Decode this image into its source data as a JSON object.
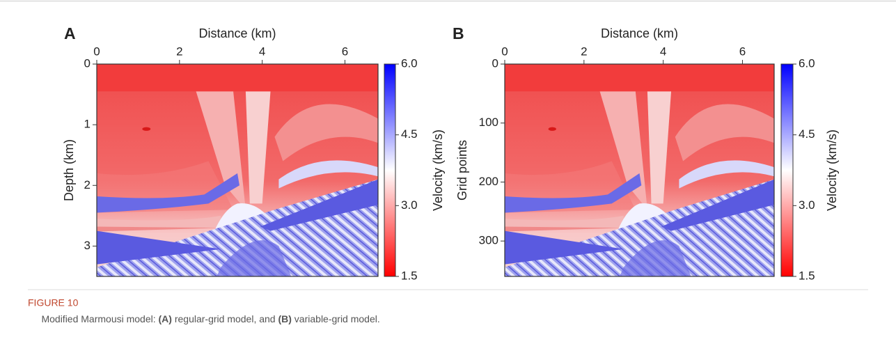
{
  "figure": {
    "label": "FIGURE 10",
    "caption": [
      "Modified Marmousi model: ",
      "(A)",
      " regular-grid model, and ",
      "(B)",
      " variable-grid model."
    ]
  },
  "panels": [
    {
      "letter": "A",
      "x_label": "Distance (km)",
      "y_label": "Depth (km)",
      "xlim": [
        0,
        6.8
      ],
      "xticks": [
        0,
        2,
        4,
        6
      ],
      "ylim": [
        0,
        3.5
      ],
      "yticks": [
        0,
        1,
        2,
        3
      ],
      "colorbar": {
        "label": "Velocity (km/s)",
        "lim": [
          1.5,
          6.0
        ],
        "colors": [
          "#ff0000",
          "#ffffff",
          "#0000ff"
        ],
        "ticks": [
          1.5,
          {
            "value": 3,
            "label": "3.0"
          },
          4.5,
          {
            "value": 6,
            "label": "6.0"
          }
        ]
      }
    },
    {
      "letter": "B",
      "x_label": "Distance (km)",
      "y_label": "Grid points",
      "xlim": [
        0,
        6.8
      ],
      "xticks": [
        0,
        2,
        4,
        6
      ],
      "ylim": [
        0,
        360
      ],
      "yticks": [
        0,
        100,
        200,
        300
      ],
      "colorbar": {
        "label": "Velocity (km/s)",
        "lim": [
          1.5,
          6.0
        ],
        "colors": [
          "#ff0000",
          "#ffffff",
          "#0000ff"
        ],
        "ticks": [
          1.5,
          {
            "value": 3,
            "label": "3.0"
          },
          4.5,
          {
            "value": 6,
            "label": "6.0"
          }
        ]
      }
    }
  ]
}
